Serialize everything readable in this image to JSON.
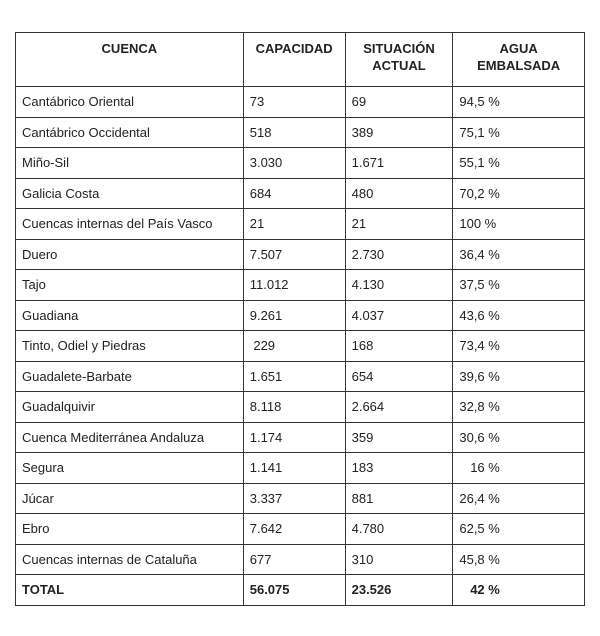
{
  "table": {
    "headers": [
      "CUENCA",
      "CAPACIDAD",
      "SITUACIÓN ACTUAL",
      "AGUA EMBALSADA"
    ],
    "rows": [
      [
        "Cantábrico Oriental",
        "73",
        "69",
        "94,5 %"
      ],
      [
        "Cantábrico Occidental",
        "518",
        "389",
        "75,1 %"
      ],
      [
        "Miño-Sil",
        "3.030",
        "1.671",
        "55,1 %"
      ],
      [
        "Galicia Costa",
        "684",
        "480",
        "70,2 %"
      ],
      [
        "Cuencas internas del País Vasco",
        "21",
        "21",
        "100 %"
      ],
      [
        "Duero",
        "7.507",
        "2.730",
        "36,4 %"
      ],
      [
        "Tajo",
        "11.012",
        "4.130",
        "37,5 %"
      ],
      [
        "Guadiana",
        "9.261",
        "4.037",
        "43,6 %"
      ],
      [
        "Tinto, Odiel y Piedras",
        " 229",
        "168",
        "73,4 %"
      ],
      [
        "Guadalete-Barbate",
        "1.651",
        "654",
        "39,6 %"
      ],
      [
        "Guadalquivir",
        "8.118",
        "2.664",
        "32,8 %"
      ],
      [
        "Cuenca Mediterránea Andaluza",
        "1.174",
        "359",
        "30,6 %"
      ],
      [
        "Segura",
        "1.141",
        "183",
        "   16 %"
      ],
      [
        "Júcar",
        "3.337",
        "881",
        "26,4 %"
      ],
      [
        "Ebro",
        "7.642",
        "4.780",
        "62,5 %"
      ],
      [
        "Cuencas internas de Cataluña",
        "677",
        "310",
        "45,8 %"
      ]
    ],
    "total": [
      "TOTAL",
      "56.075",
      "23.526",
      "   42 %"
    ]
  }
}
